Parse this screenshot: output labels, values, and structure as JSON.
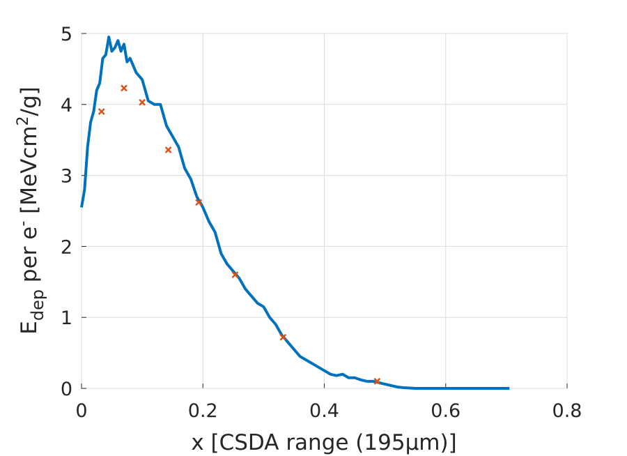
{
  "chart_data": {
    "type": "line-scatter",
    "xlabel": "x [CSDA range (195μm)]",
    "ylabel": [
      {
        "text": "E"
      },
      {
        "text": "dep",
        "baseline": "sub"
      },
      {
        "text": " per e"
      },
      {
        "text": "-",
        "baseline": "super"
      },
      {
        "text": " [MeVcm"
      },
      {
        "text": "2",
        "baseline": "super"
      },
      {
        "text": "/g]"
      }
    ],
    "xlim": [
      0,
      0.8
    ],
    "ylim": [
      0,
      5
    ],
    "xticks": [
      0,
      0.2,
      0.4,
      0.6,
      0.8
    ],
    "yticks": [
      0,
      1,
      2,
      3,
      4,
      5
    ],
    "grid": true,
    "series": [
      {
        "kind": "line",
        "color": "#0072bd",
        "x": [
          0,
          0.005,
          0.01,
          0.015,
          0.02,
          0.025,
          0.03,
          0.035,
          0.04,
          0.045,
          0.05,
          0.055,
          0.06,
          0.065,
          0.07,
          0.075,
          0.08,
          0.09,
          0.1,
          0.105,
          0.11,
          0.12,
          0.13,
          0.14,
          0.15,
          0.16,
          0.17,
          0.18,
          0.19,
          0.2,
          0.21,
          0.22,
          0.23,
          0.24,
          0.25,
          0.26,
          0.27,
          0.28,
          0.29,
          0.3,
          0.31,
          0.32,
          0.33,
          0.34,
          0.35,
          0.36,
          0.37,
          0.38,
          0.39,
          0.4,
          0.41,
          0.42,
          0.43,
          0.44,
          0.45,
          0.46,
          0.47,
          0.48,
          0.49,
          0.5,
          0.51,
          0.52,
          0.53,
          0.55,
          0.6,
          0.65,
          0.7,
          0.705
        ],
        "values": [
          2.55,
          2.8,
          3.4,
          3.75,
          3.9,
          4.2,
          4.3,
          4.65,
          4.7,
          4.95,
          4.75,
          4.8,
          4.9,
          4.75,
          4.85,
          4.6,
          4.65,
          4.45,
          4.35,
          4.2,
          4.05,
          4.0,
          4.0,
          3.7,
          3.55,
          3.4,
          3.1,
          2.95,
          2.7,
          2.55,
          2.35,
          2.2,
          1.9,
          1.75,
          1.65,
          1.55,
          1.4,
          1.3,
          1.2,
          1.15,
          1.0,
          0.9,
          0.75,
          0.65,
          0.55,
          0.45,
          0.4,
          0.35,
          0.3,
          0.25,
          0.2,
          0.18,
          0.2,
          0.15,
          0.15,
          0.12,
          0.1,
          0.1,
          0.08,
          0.06,
          0.04,
          0.02,
          0.01,
          0,
          0,
          0,
          0,
          0
        ]
      },
      {
        "kind": "scatter",
        "color": "#d95319",
        "x": [
          0.033,
          0.07,
          0.1,
          0.143,
          0.193,
          0.253,
          0.332,
          0.487
        ],
        "values": [
          3.9,
          4.23,
          4.03,
          3.36,
          2.62,
          1.6,
          0.72,
          0.1
        ]
      }
    ]
  }
}
